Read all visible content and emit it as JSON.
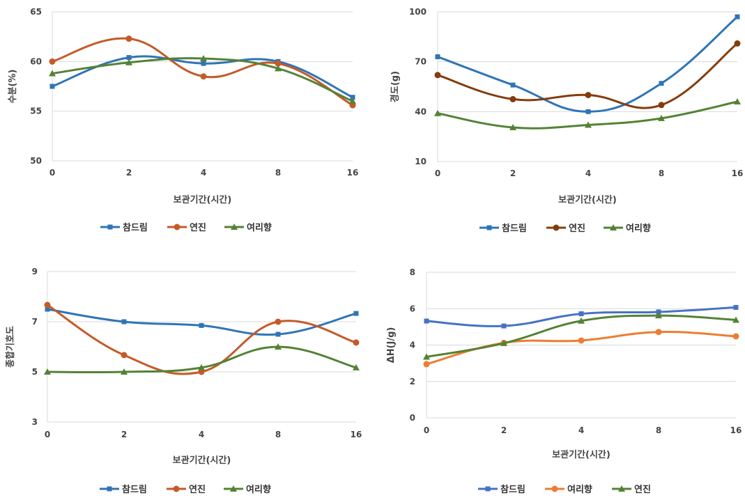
{
  "chart_data": [
    {
      "type": "line",
      "categories": [
        "0",
        "2",
        "4",
        "8",
        "16"
      ],
      "xlabel": "보관기간(시간)",
      "ylabel": "수분(%)",
      "ylim": [
        50,
        65
      ],
      "yticks": [
        50,
        55,
        60,
        65
      ],
      "grid": true,
      "legend": "bottom",
      "series": [
        {
          "name": "참드림",
          "values": [
            57.5,
            60.4,
            59.8,
            60.0,
            56.4
          ],
          "color": "#2e75b6",
          "marker": "square"
        },
        {
          "name": "연진",
          "values": [
            60.0,
            62.3,
            58.5,
            59.8,
            55.6
          ],
          "color": "#c55a28",
          "marker": "circle"
        },
        {
          "name": "여리향",
          "values": [
            58.8,
            59.9,
            60.3,
            59.3,
            56.0
          ],
          "color": "#548235",
          "marker": "triangle"
        }
      ]
    },
    {
      "type": "line",
      "categories": [
        "0",
        "2",
        "4",
        "8",
        "16"
      ],
      "xlabel": "보관기간(시간)",
      "ylabel": "경도(g)",
      "ylim": [
        10,
        100
      ],
      "yticks": [
        10,
        40,
        70,
        100
      ],
      "grid": true,
      "legend": "bottom",
      "series": [
        {
          "name": "참드림",
          "values": [
            73.0,
            56.0,
            40.0,
            57.0,
            97.0
          ],
          "color": "#2e75b6",
          "marker": "square"
        },
        {
          "name": "연진",
          "values": [
            62.0,
            47.5,
            50.0,
            44.0,
            81.0
          ],
          "color": "#843c0c",
          "marker": "circle"
        },
        {
          "name": "여리향",
          "values": [
            39.0,
            30.5,
            32.0,
            36.0,
            46.0
          ],
          "color": "#548235",
          "marker": "triangle"
        }
      ]
    },
    {
      "type": "line",
      "categories": [
        "0",
        "2",
        "4",
        "8",
        "16"
      ],
      "xlabel": "보관기간(시간)",
      "ylabel": "종합기호도",
      "ylim": [
        3,
        9
      ],
      "yticks": [
        3,
        5,
        7,
        9
      ],
      "grid": true,
      "legend": "bottom",
      "series": [
        {
          "name": "참드림",
          "values": [
            7.5,
            7.0,
            6.85,
            6.5,
            7.33
          ],
          "color": "#2e75b6",
          "marker": "square"
        },
        {
          "name": "연진",
          "values": [
            7.67,
            5.67,
            5.0,
            7.0,
            6.17
          ],
          "color": "#c55a28",
          "marker": "circle"
        },
        {
          "name": "여리향",
          "values": [
            5.0,
            5.0,
            5.17,
            6.0,
            5.17
          ],
          "color": "#548235",
          "marker": "triangle"
        }
      ]
    },
    {
      "type": "line",
      "categories": [
        "0",
        "2",
        "4",
        "8",
        "16"
      ],
      "xlabel": "보관기간(시간)",
      "ylabel": "ΔH(J/g)",
      "ylim": [
        0,
        8
      ],
      "yticks": [
        0,
        2,
        4,
        6,
        8
      ],
      "grid": true,
      "legend": "bottom",
      "series": [
        {
          "name": "참드림",
          "values": [
            5.32,
            5.05,
            5.72,
            5.82,
            6.07
          ],
          "color": "#4472c4",
          "marker": "square"
        },
        {
          "name": "여리향",
          "values": [
            2.95,
            4.12,
            4.25,
            4.72,
            4.48
          ],
          "color": "#ed7d31",
          "marker": "circle"
        },
        {
          "name": "연진",
          "values": [
            3.35,
            4.1,
            5.33,
            5.62,
            5.38
          ],
          "color": "#548235",
          "marker": "triangle"
        }
      ]
    }
  ]
}
